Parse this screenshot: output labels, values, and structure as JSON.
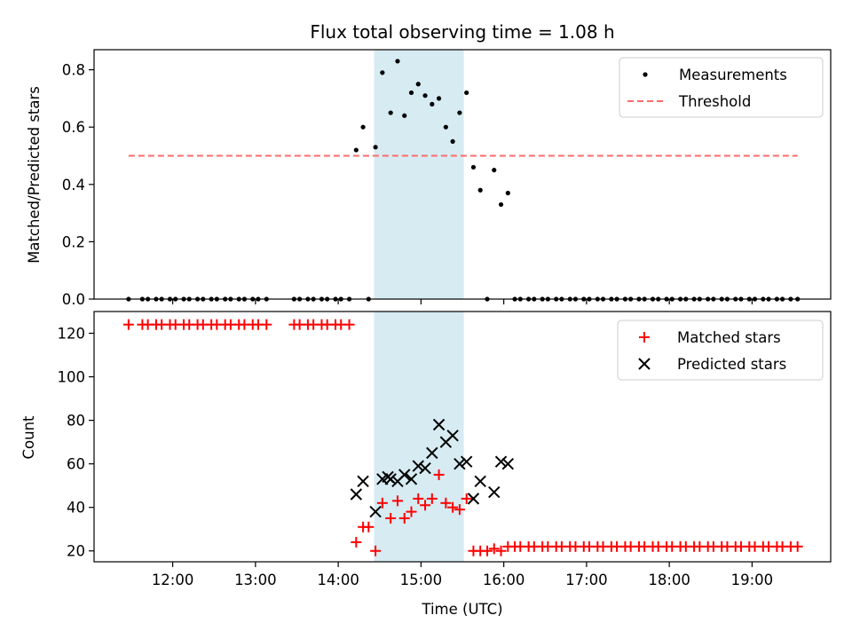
{
  "chart_data": [
    {
      "type": "scatter",
      "title": "Flux total observing time = 1.08 h",
      "xlabel": "",
      "ylabel": "Matched/Predicted stars",
      "ylim": [
        0,
        0.87
      ],
      "yticks": [
        "0.0",
        "0.2",
        "0.4",
        "0.6",
        "0.8"
      ],
      "ytick_values": [
        0,
        0.2,
        0.4,
        0.6,
        0.8
      ],
      "xlim_hours": [
        11.05,
        19.95
      ],
      "highlight_span": [
        "14:26",
        "15:31"
      ],
      "highlight_color": "#add8e6",
      "legend_position": "top-right",
      "series": [
        {
          "name": "Measurements",
          "kind": "scatter",
          "marker": "dot",
          "color": "#000000",
          "x": [
            "11:28",
            "11:38",
            "11:42",
            "11:48",
            "11:52",
            "11:58",
            "12:02",
            "12:08",
            "12:12",
            "12:18",
            "12:22",
            "12:28",
            "12:32",
            "12:38",
            "12:42",
            "12:48",
            "12:52",
            "12:58",
            "13:02",
            "13:08",
            "13:28",
            "13:32",
            "13:38",
            "13:42",
            "13:48",
            "13:52",
            "13:58",
            "14:02",
            "14:08",
            "14:13",
            "14:18",
            "14:22",
            "14:27",
            "14:32",
            "14:38",
            "14:43",
            "14:48",
            "14:53",
            "14:58",
            "15:03",
            "15:08",
            "15:13",
            "15:18",
            "15:23",
            "15:28",
            "15:33",
            "15:38",
            "15:43",
            "15:48",
            "15:53",
            "15:58",
            "16:03",
            "16:08",
            "16:12",
            "16:18",
            "16:22",
            "16:28",
            "16:32",
            "16:38",
            "16:42",
            "16:48",
            "16:52",
            "16:58",
            "17:02",
            "17:08",
            "17:12",
            "17:18",
            "17:22",
            "17:28",
            "17:32",
            "17:38",
            "17:42",
            "17:48",
            "17:52",
            "17:58",
            "18:02",
            "18:08",
            "18:12",
            "18:18",
            "18:22",
            "18:28",
            "18:32",
            "18:38",
            "18:42",
            "18:48",
            "18:52",
            "18:58",
            "19:02",
            "19:08",
            "19:12",
            "19:18",
            "19:22",
            "19:28",
            "19:33"
          ],
          "y": [
            0,
            0,
            0,
            0,
            0,
            0,
            0,
            0,
            0,
            0,
            0,
            0,
            0,
            0,
            0,
            0,
            0,
            0,
            0,
            0,
            0,
            0,
            0,
            0,
            0,
            0,
            0,
            0,
            0,
            0.52,
            0.6,
            0,
            0.53,
            0.79,
            0.65,
            0.83,
            0.64,
            0.72,
            0.75,
            0.71,
            0.68,
            0.7,
            0.6,
            0.55,
            0.65,
            0.72,
            0.46,
            0.38,
            0,
            0.45,
            0.33,
            0.37,
            0,
            0,
            0,
            0,
            0,
            0,
            0,
            0,
            0,
            0,
            0,
            0,
            0,
            0,
            0,
            0,
            0,
            0,
            0,
            0,
            0,
            0,
            0,
            0,
            0,
            0,
            0,
            0,
            0,
            0,
            0,
            0,
            0,
            0,
            0,
            0,
            0,
            0,
            0,
            0,
            0,
            0
          ]
        },
        {
          "name": "Threshold",
          "kind": "line",
          "dash": true,
          "color": "#ff6b6b",
          "x": [
            "11:28",
            "19:33"
          ],
          "y": [
            0.5,
            0.5
          ]
        }
      ]
    },
    {
      "type": "scatter",
      "title": "",
      "xlabel": "Time (UTC)",
      "ylabel": "Count",
      "ylim": [
        15,
        130
      ],
      "yticks": [
        "20",
        "40",
        "60",
        "80",
        "100",
        "120"
      ],
      "ytick_values": [
        20,
        40,
        60,
        80,
        100,
        120
      ],
      "xlim_hours": [
        11.05,
        19.95
      ],
      "xticks": [
        "12:00",
        "13:00",
        "14:00",
        "15:00",
        "16:00",
        "17:00",
        "18:00",
        "19:00"
      ],
      "xtick_values": [
        12,
        13,
        14,
        15,
        16,
        17,
        18,
        19
      ],
      "highlight_span": [
        "14:26",
        "15:31"
      ],
      "highlight_color": "#add8e6",
      "legend_position": "top-right",
      "series": [
        {
          "name": "Matched stars",
          "kind": "scatter",
          "marker": "plus",
          "color": "#ff0000",
          "x": [
            "11:28",
            "11:38",
            "11:42",
            "11:48",
            "11:52",
            "11:58",
            "12:02",
            "12:08",
            "12:12",
            "12:18",
            "12:22",
            "12:28",
            "12:32",
            "12:38",
            "12:42",
            "12:48",
            "12:52",
            "12:58",
            "13:02",
            "13:08",
            "13:28",
            "13:32",
            "13:38",
            "13:42",
            "13:48",
            "13:52",
            "13:58",
            "14:02",
            "14:08",
            "14:13",
            "14:18",
            "14:22",
            "14:27",
            "14:32",
            "14:38",
            "14:43",
            "14:48",
            "14:53",
            "14:58",
            "15:03",
            "15:08",
            "15:13",
            "15:18",
            "15:23",
            "15:28",
            "15:33",
            "15:38",
            "15:43",
            "15:48",
            "15:53",
            "15:58",
            "16:03",
            "16:08",
            "16:12",
            "16:18",
            "16:22",
            "16:28",
            "16:32",
            "16:38",
            "16:42",
            "16:48",
            "16:52",
            "16:58",
            "17:02",
            "17:08",
            "17:12",
            "17:18",
            "17:22",
            "17:28",
            "17:32",
            "17:38",
            "17:42",
            "17:48",
            "17:52",
            "17:58",
            "18:02",
            "18:08",
            "18:12",
            "18:18",
            "18:22",
            "18:28",
            "18:32",
            "18:38",
            "18:42",
            "18:48",
            "18:52",
            "18:58",
            "19:02",
            "19:08",
            "19:12",
            "19:18",
            "19:22",
            "19:28",
            "19:33"
          ],
          "y": [
            124,
            124,
            124,
            124,
            124,
            124,
            124,
            124,
            124,
            124,
            124,
            124,
            124,
            124,
            124,
            124,
            124,
            124,
            124,
            124,
            124,
            124,
            124,
            124,
            124,
            124,
            124,
            124,
            124,
            24,
            31,
            31,
            20,
            42,
            35,
            43,
            35,
            38,
            44,
            41,
            44,
            55,
            42,
            40,
            39,
            44,
            20,
            20,
            20,
            21,
            20,
            22,
            22,
            22,
            22,
            22,
            22,
            22,
            22,
            22,
            22,
            22,
            22,
            22,
            22,
            22,
            22,
            22,
            22,
            22,
            22,
            22,
            22,
            22,
            22,
            22,
            22,
            22,
            22,
            22,
            22,
            22,
            22,
            22,
            22,
            22,
            22,
            22,
            22,
            22,
            22,
            22,
            22,
            22
          ]
        },
        {
          "name": "Predicted stars",
          "kind": "scatter",
          "marker": "x",
          "color": "#000000",
          "x": [
            "14:13",
            "14:18",
            "14:27",
            "14:32",
            "14:36",
            "14:38",
            "14:43",
            "14:48",
            "14:53",
            "14:58",
            "15:03",
            "15:08",
            "15:13",
            "15:18",
            "15:23",
            "15:28",
            "15:33",
            "15:38",
            "15:43",
            "15:53",
            "15:58",
            "16:03"
          ],
          "y": [
            46,
            52,
            38,
            53,
            54,
            53,
            52,
            55,
            53,
            59,
            58,
            65,
            78,
            70,
            73,
            60,
            61,
            44,
            52,
            47,
            61,
            60
          ]
        }
      ]
    }
  ]
}
